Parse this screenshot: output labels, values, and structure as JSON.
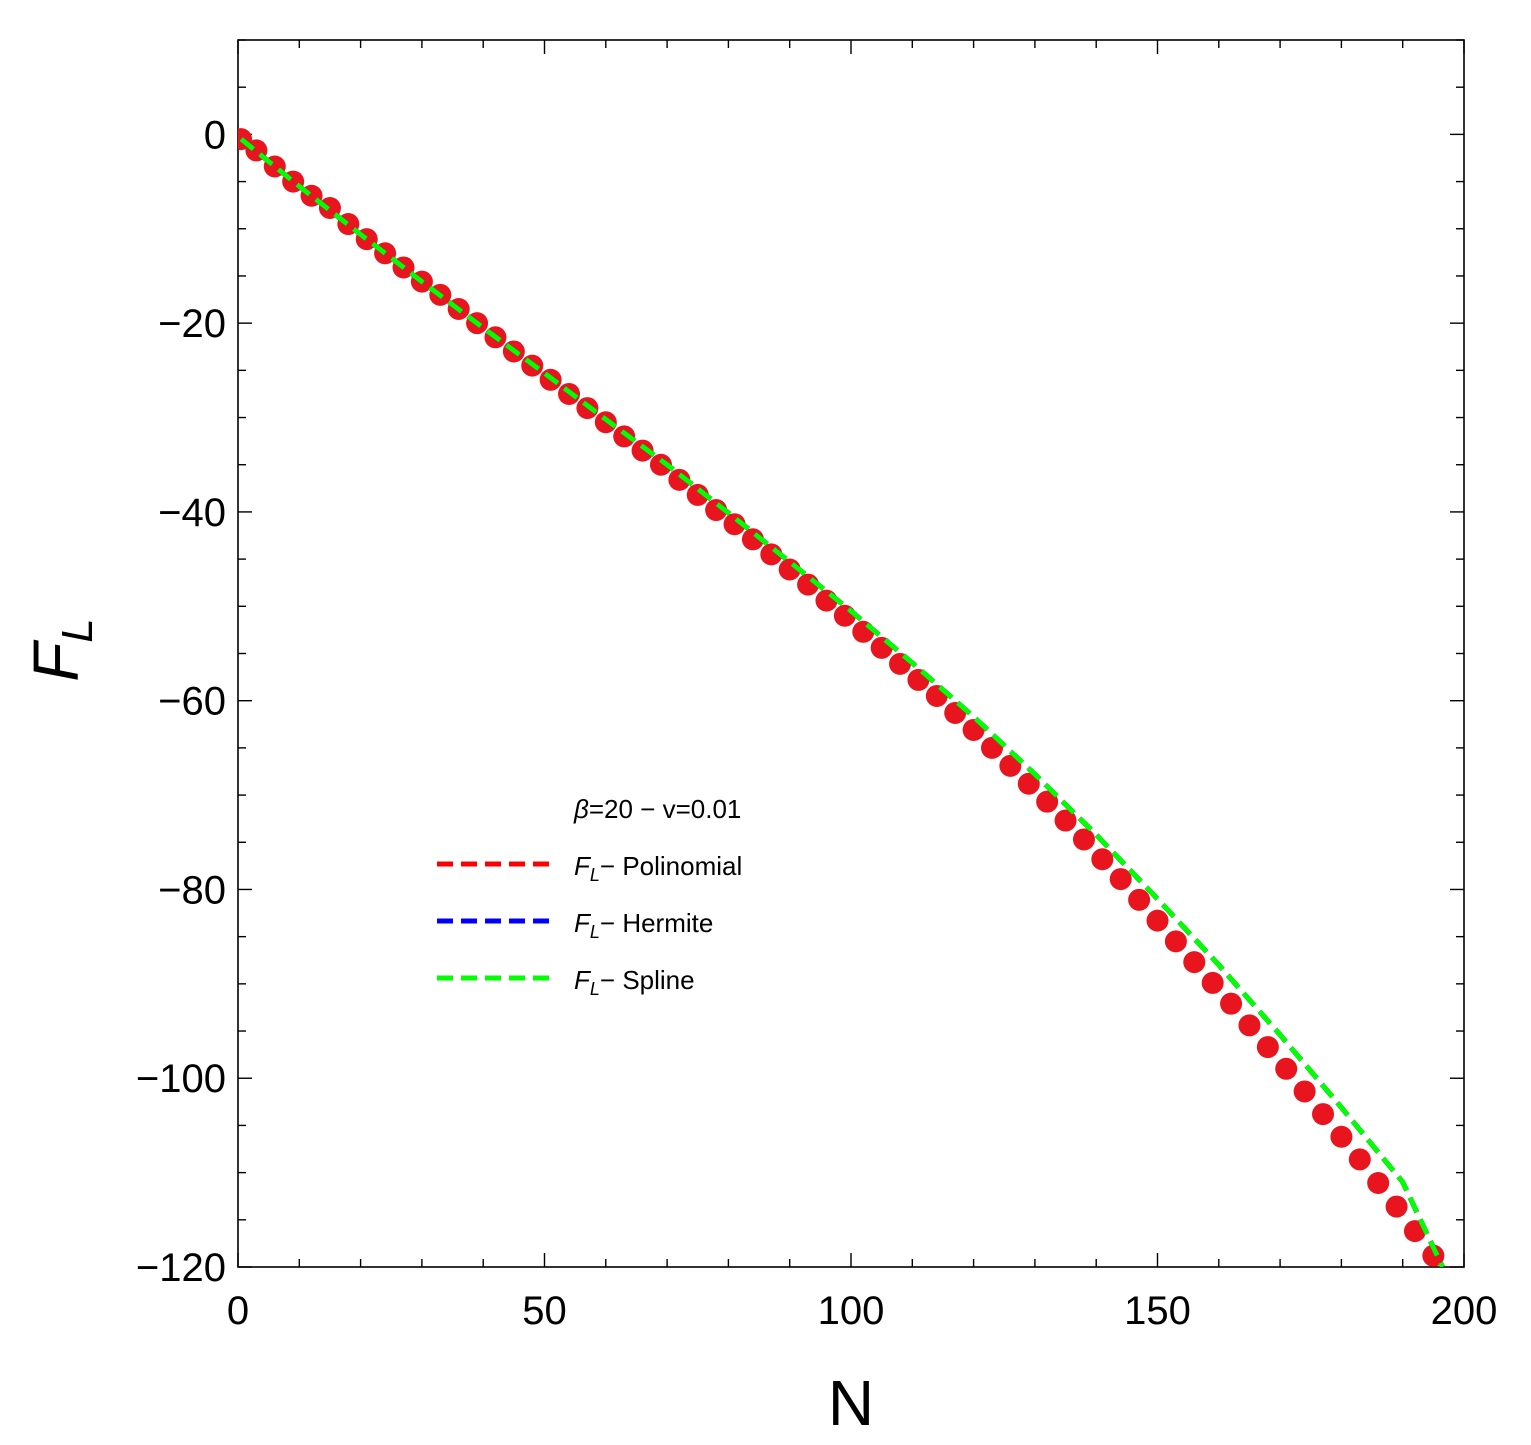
{
  "chart_data": {
    "type": "line",
    "xlabel": "N",
    "ylabel": {
      "main": "F",
      "sub": "L"
    },
    "xlim": [
      0,
      200
    ],
    "ylim": [
      -120,
      10
    ],
    "x_ticks": [
      0,
      50,
      100,
      150,
      200
    ],
    "x_tick_labels": [
      "0",
      "50",
      "100",
      "150",
      "200"
    ],
    "y_ticks": [
      0,
      -20,
      -40,
      -60,
      -80,
      -100,
      -120
    ],
    "y_tick_labels": [
      "0",
      "−20",
      "−40",
      "−60",
      "−80",
      "−100",
      "−120"
    ],
    "grid": false,
    "legend_position": "center-left",
    "legend": {
      "title": {
        "greek": "β",
        "text": "=20 − v=0.01"
      },
      "entries": [
        {
          "main": "F",
          "sub": "L",
          "text": "− Polinomial",
          "color": "#ff0000"
        },
        {
          "main": "F",
          "sub": "L",
          "text": "− Hermite",
          "color": "#0000ff"
        },
        {
          "main": "F",
          "sub": "L",
          "text": "− Spline",
          "color": "#00ff00"
        }
      ]
    },
    "markers": {
      "color": "#e8141e",
      "x": [
        0.5,
        3,
        6,
        9,
        12,
        15,
        18,
        21,
        24,
        27,
        30,
        33,
        36,
        39,
        42,
        45,
        48,
        51,
        54,
        57,
        60,
        63,
        66,
        69,
        72,
        75,
        78,
        81,
        84,
        87,
        90,
        93,
        96,
        99,
        102,
        105,
        108,
        111,
        114,
        117,
        120,
        123,
        126,
        129,
        132,
        135,
        138,
        141,
        144,
        147,
        150,
        153,
        156,
        159,
        162,
        165,
        168,
        171,
        174,
        177,
        180,
        183,
        186,
        189,
        192,
        195
      ],
      "y": [
        -0.5,
        -1.7,
        -3.4,
        -5.0,
        -6.5,
        -7.8,
        -9.5,
        -11.1,
        -12.6,
        -14.1,
        -15.6,
        -17.0,
        -18.5,
        -20.0,
        -21.5,
        -23.0,
        -24.5,
        -26.0,
        -27.5,
        -29.0,
        -30.5,
        -32.0,
        -33.5,
        -35.0,
        -36.6,
        -38.2,
        -39.8,
        -41.3,
        -42.9,
        -44.5,
        -46.1,
        -47.7,
        -49.4,
        -51.0,
        -52.7,
        -54.4,
        -56.1,
        -57.8,
        -59.5,
        -61.3,
        -63.1,
        -65.0,
        -66.9,
        -68.8,
        -70.7,
        -72.7,
        -74.7,
        -76.8,
        -78.9,
        -81.1,
        -83.3,
        -85.5,
        -87.7,
        -89.9,
        -92.1,
        -94.4,
        -96.7,
        -99.0,
        -101.4,
        -103.8,
        -106.2,
        -108.6,
        -111.1,
        -113.6,
        -116.2,
        -118.8
      ]
    },
    "series": [
      {
        "name": "F_L - Polinomial",
        "color": "#ff0000",
        "style": "dashed",
        "x": [
          0.5,
          10,
          20,
          30,
          40,
          50,
          60,
          70,
          80,
          90,
          100,
          110,
          120,
          130,
          140,
          150,
          160,
          170,
          180,
          190,
          196.5
        ],
        "y": [
          -0.5,
          -5.5,
          -10.6,
          -15.6,
          -20.5,
          -25.3,
          -30.2,
          -35.0,
          -40.1,
          -45.3,
          -50.5,
          -56.0,
          -61.7,
          -67.8,
          -74.2,
          -81.0,
          -88.0,
          -95.4,
          -103.1,
          -111.0,
          -120.0
        ]
      },
      {
        "name": "F_L - Hermite",
        "color": "#0000ff",
        "style": "dashed",
        "x": [
          0.5,
          10,
          20,
          30,
          40,
          50,
          60,
          70,
          80,
          90,
          100,
          110,
          120,
          130,
          140,
          150,
          160,
          170,
          180,
          190,
          196.5
        ],
        "y": [
          -0.5,
          -5.5,
          -10.6,
          -15.6,
          -20.5,
          -25.3,
          -30.2,
          -35.0,
          -40.1,
          -45.3,
          -50.5,
          -56.0,
          -61.7,
          -67.8,
          -74.2,
          -81.0,
          -88.0,
          -95.4,
          -103.1,
          -111.0,
          -120.0
        ]
      },
      {
        "name": "F_L - Spline",
        "color": "#00ff00",
        "style": "dashed",
        "x": [
          0.5,
          10,
          20,
          30,
          40,
          50,
          60,
          70,
          80,
          90,
          100,
          110,
          120,
          130,
          140,
          150,
          160,
          170,
          180,
          190,
          196.5
        ],
        "y": [
          -0.5,
          -5.5,
          -10.6,
          -15.6,
          -20.5,
          -25.3,
          -30.2,
          -35.0,
          -40.1,
          -45.3,
          -50.5,
          -56.0,
          -61.7,
          -67.8,
          -74.2,
          -81.0,
          -88.0,
          -95.4,
          -103.1,
          -111.0,
          -120.0
        ]
      }
    ]
  }
}
